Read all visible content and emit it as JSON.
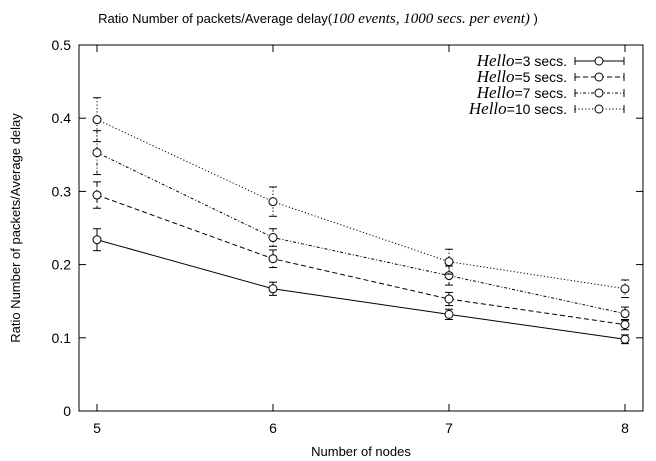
{
  "chart_data": {
    "type": "line",
    "title_prefix": "Ratio Number of packets/Average delay(",
    "title_italic": "100 events, 1000 secs. per event)",
    "title_suffix": " )",
    "xlabel": "Number of nodes",
    "ylabel": "Ratio Number of packets/Average delay",
    "x": [
      5,
      6,
      7,
      8
    ],
    "xlim": [
      5,
      8
    ],
    "ylim": [
      0,
      0.5
    ],
    "xticks": [
      "5",
      "6",
      "7",
      "8"
    ],
    "yticks": [
      "0",
      "0.1",
      "0.2",
      "0.3",
      "0.4",
      "0.5"
    ],
    "grid": false,
    "legend_position": "top-right",
    "series": [
      {
        "name": "Hello=3 secs.",
        "legend_italic": "Hello",
        "legend_rest": "=3 secs.",
        "line_style": "solid",
        "values": [
          0.234,
          0.167,
          0.132,
          0.098
        ],
        "errors": [
          0.015,
          0.009,
          0.007,
          0.006
        ]
      },
      {
        "name": "Hello=5 secs.",
        "legend_italic": "Hello",
        "legend_rest": "=5 secs.",
        "line_style": "dashed",
        "values": [
          0.295,
          0.208,
          0.153,
          0.118
        ],
        "errors": [
          0.018,
          0.012,
          0.009,
          0.007
        ]
      },
      {
        "name": "Hello=7 secs.",
        "legend_italic": "Hello",
        "legend_rest": "=7 secs.",
        "line_style": "dotted-dashed",
        "values": [
          0.353,
          0.237,
          0.185,
          0.133
        ],
        "errors": [
          0.03,
          0.012,
          0.013,
          0.009
        ]
      },
      {
        "name": "Hello=10 secs.",
        "legend_italic": "Hello",
        "legend_rest": "=10 secs.",
        "line_style": "dotted",
        "values": [
          0.398,
          0.286,
          0.204,
          0.167
        ],
        "errors": [
          0.03,
          0.02,
          0.017,
          0.012
        ]
      }
    ]
  }
}
